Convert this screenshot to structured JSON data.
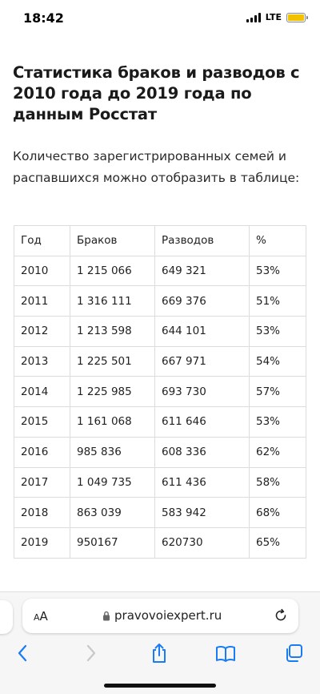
{
  "status": {
    "time": "18:42",
    "network": "LTE"
  },
  "article": {
    "heading": "Статистика браков и разводов с 2010 года до 2019 года по данным Росстат",
    "intro": "Количество зарегистрированных семей и распавшихся можно отобразить в таблице:"
  },
  "table": {
    "headers": [
      "Год",
      "Браков",
      "Разводов",
      "%"
    ],
    "rows": [
      [
        "2010",
        "1 215 066",
        "649 321",
        "53%"
      ],
      [
        "2011",
        "1 316 111",
        "669 376",
        "51%"
      ],
      [
        "2012",
        "1 213 598",
        "644 101",
        "53%"
      ],
      [
        "2013",
        "1 225 501",
        "667 971",
        "54%"
      ],
      [
        "2014",
        "1 225 985",
        "693 730",
        "57%"
      ],
      [
        "2015",
        "1 161 068",
        "611 646",
        "53%"
      ],
      [
        "2016",
        "985 836",
        "608 336",
        "62%"
      ],
      [
        "2017",
        "1 049 735",
        "611 436",
        "58%"
      ],
      [
        "2018",
        "863 039",
        "583 942",
        "68%"
      ],
      [
        "2019",
        "950167",
        "620730",
        "65%"
      ]
    ]
  },
  "browser": {
    "text_size_small": "A",
    "text_size_large": "A",
    "url": "pravovoiexpert.ru"
  },
  "icons": {
    "signal": "cellular-signal-icon",
    "battery": "battery-icon",
    "lock": "lock-icon",
    "reload": "reload-icon",
    "back": "chevron-left-icon",
    "forward": "chevron-right-icon",
    "share": "share-icon",
    "bookmarks": "book-icon",
    "tabs": "tabs-icon"
  },
  "colors": {
    "accent": "#1a7cf5",
    "battery_fill": "#f2c200"
  }
}
